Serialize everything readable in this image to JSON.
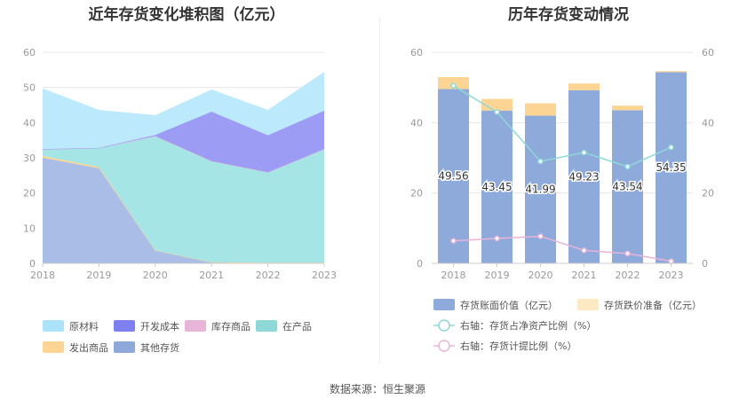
{
  "titles": {
    "left": "近年存货变化堆积图（亿元）",
    "right": "历年存货变动情况"
  },
  "source": "数据来源：恒生聚源",
  "chart_data": [
    {
      "type": "area",
      "title": "近年存货变化堆积图（亿元）",
      "stacked": true,
      "x": [
        "2018",
        "2019",
        "2020",
        "2021",
        "2022",
        "2023"
      ],
      "ylim": [
        0,
        60
      ],
      "yticks": [
        0,
        10,
        20,
        30,
        40,
        50,
        60
      ],
      "grid": true,
      "legend_position": "bottom",
      "series": [
        {
          "name": "其他存货",
          "color": "#a9bde6",
          "values": [
            30.0,
            27.0,
            3.6,
            0.3,
            0.2,
            0.2
          ]
        },
        {
          "name": "发出商品",
          "color": "#fdd797",
          "values": [
            0.5,
            0.4,
            0.1,
            0.0,
            0.0,
            0.0
          ]
        },
        {
          "name": "在产品",
          "color": "#a5e5e5",
          "values": [
            1.8,
            5.3,
            32.5,
            28.8,
            25.7,
            32.3
          ]
        },
        {
          "name": "库存商品",
          "color": "#e9b6dc",
          "values": [
            0.2,
            0.1,
            0.0,
            0.0,
            0.0,
            0.0
          ]
        },
        {
          "name": "开发成本",
          "color": "#9c9cf5",
          "values": [
            0.0,
            0.0,
            0.3,
            14.0,
            10.5,
            10.9
          ]
        },
        {
          "name": "原材料",
          "color": "#bde9fc",
          "values": [
            17.1,
            10.7,
            5.5,
            6.2,
            7.1,
            10.9
          ]
        }
      ],
      "legend": [
        {
          "name": "原材料",
          "color": "#aae3fa"
        },
        {
          "name": "开发成本",
          "color": "#7f80ef"
        },
        {
          "name": "库存商品",
          "color": "#e8b4d8"
        },
        {
          "name": "在产品",
          "color": "#8fd8d8"
        },
        {
          "name": "发出商品",
          "color": "#fcd594"
        },
        {
          "name": "其他存货",
          "color": "#8ea8da"
        }
      ]
    },
    {
      "type": "bar",
      "title": "历年存货变动情况",
      "stacked": true,
      "categories": [
        "2018",
        "2019",
        "2020",
        "2021",
        "2022",
        "2023"
      ],
      "ylim": [
        0,
        60
      ],
      "yticks": [
        0,
        20,
        40,
        60
      ],
      "y2lim": [
        0,
        60
      ],
      "y2ticks": [
        0,
        20,
        40,
        60
      ],
      "legend_position": "bottom",
      "series": [
        {
          "name": "存货账面价值（亿元）",
          "color": "#8eaadb",
          "values": [
            49.56,
            43.45,
            41.99,
            49.23,
            43.54,
            54.35
          ],
          "labels": [
            "49.56",
            "43.45",
            "41.99",
            "49.23",
            "43.54",
            "54.35"
          ]
        },
        {
          "name": "存货跌价准备（亿元）",
          "color": "#fcd594",
          "values": [
            3.4,
            3.3,
            3.5,
            1.9,
            1.3,
            0.3
          ]
        }
      ],
      "lines": [
        {
          "name": "右轴：存货占净资产比例（%）",
          "color": "#8fd8d8",
          "values": [
            50.5,
            43.0,
            29.0,
            31.5,
            27.5,
            33.0
          ]
        },
        {
          "name": "右轴：存货计提比例（%）",
          "color": "#e8b4d8",
          "values": [
            6.4,
            7.1,
            7.7,
            3.7,
            2.8,
            0.6
          ]
        }
      ]
    }
  ]
}
